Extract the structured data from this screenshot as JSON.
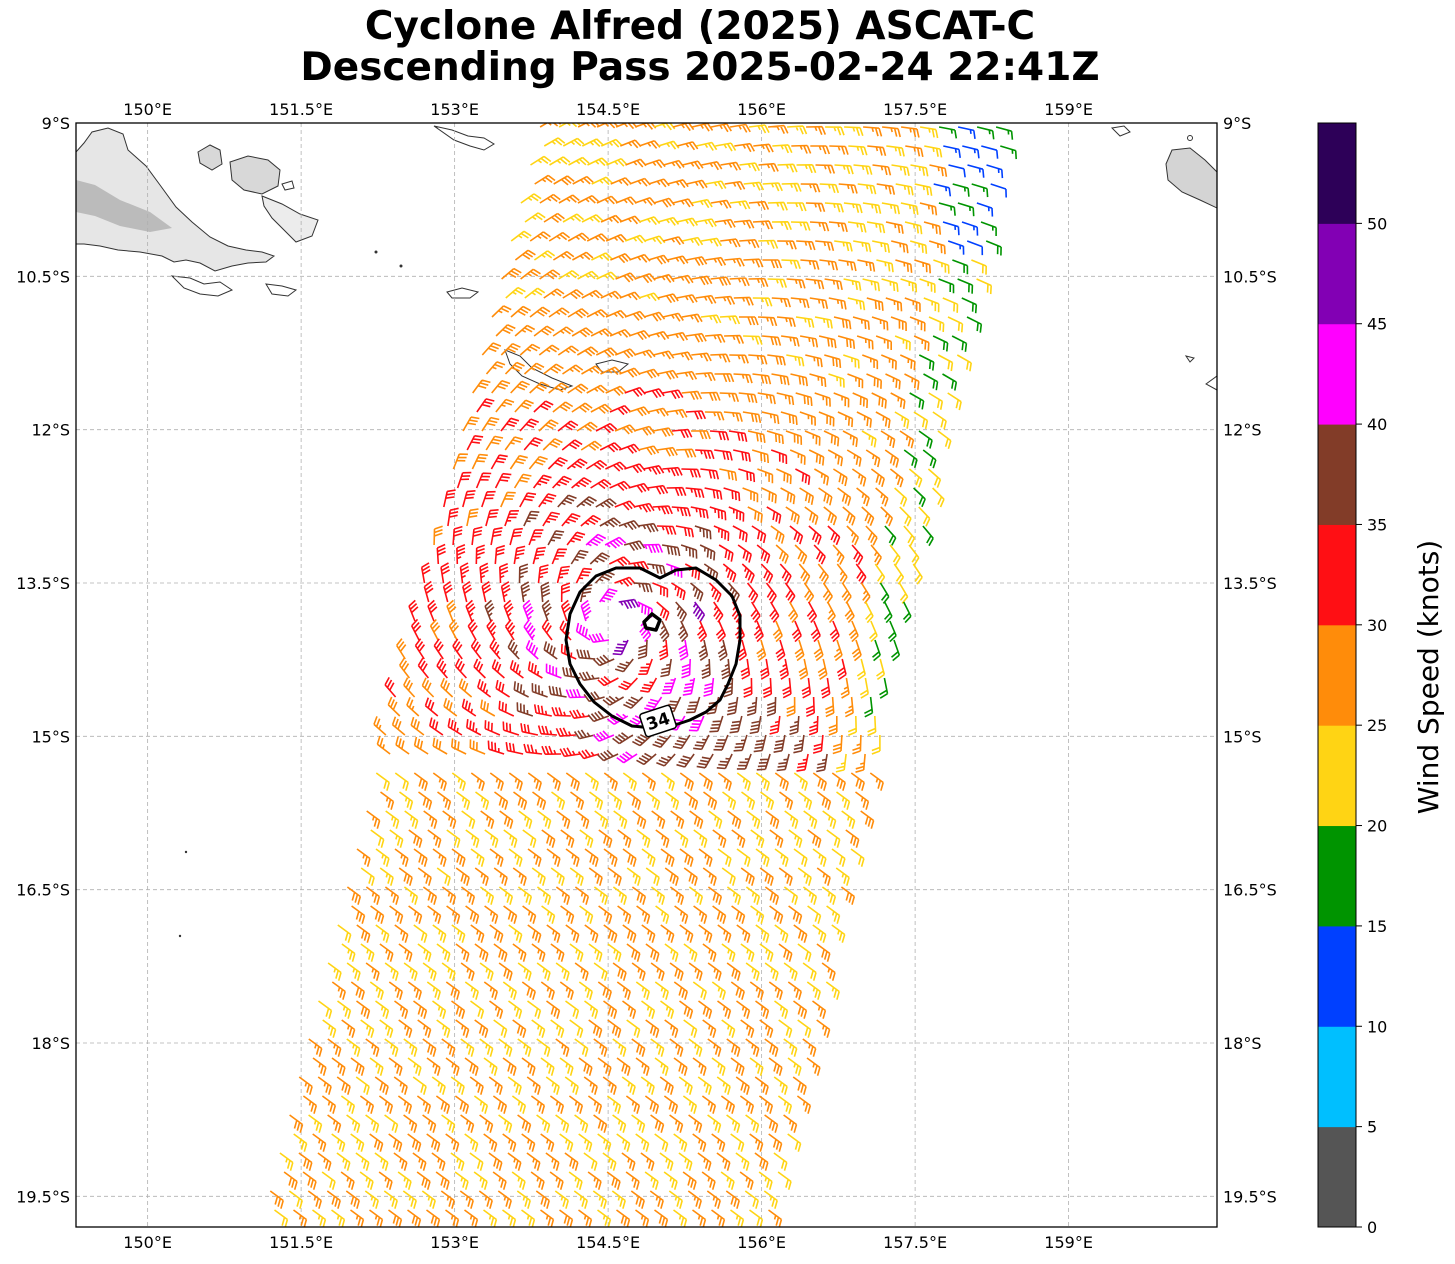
{
  "title": {
    "line1": "Cyclone Alfred (2025) ASCAT-C",
    "line2": "Descending Pass 2025-02-24 22:41Z"
  },
  "map": {
    "lon_range": [
      149.3,
      160.45
    ],
    "lat_range": [
      -19.8,
      -9.0
    ],
    "lon_ticks": [
      150,
      151.5,
      153,
      154.5,
      156,
      157.5,
      159
    ],
    "lon_tick_labels": [
      "150°E",
      "151.5°E",
      "153°E",
      "154.5°E",
      "156°E",
      "157.5°E",
      "159°E"
    ],
    "lat_ticks": [
      -9,
      -10.5,
      -12,
      -13.5,
      -15,
      -16.5,
      -18,
      -19.5
    ],
    "lat_tick_labels": [
      "9°S",
      "10.5°S",
      "12°S",
      "13.5°S",
      "15°S",
      "16.5°S",
      "18°S",
      "19.5°S"
    ],
    "gridlines": true,
    "storm_center": {
      "lon": 154.55,
      "lat": -13.9
    },
    "contour_label": "34"
  },
  "colorbar": {
    "label": "Wind Speed (knots)",
    "tick_values": [
      0,
      5,
      10,
      15,
      20,
      25,
      30,
      35,
      40,
      45,
      50
    ],
    "tick_labels": [
      "0",
      "5",
      "10",
      "15",
      "20",
      "25",
      "30",
      "35",
      "40",
      "45",
      "50"
    ],
    "bins": [
      {
        "range": "0-5",
        "color": "#555555"
      },
      {
        "range": "5-10",
        "color": "#00bfff"
      },
      {
        "range": "10-15",
        "color": "#0040ff"
      },
      {
        "range": "15-20",
        "color": "#009400"
      },
      {
        "range": "20-25",
        "color": "#ffd414"
      },
      {
        "range": "25-30",
        "color": "#ff8c0a"
      },
      {
        "range": "30-35",
        "color": "#ff0f14"
      },
      {
        "range": "35-40",
        "color": "#823c28"
      },
      {
        "range": "40-45",
        "color": "#ff00ff"
      },
      {
        "range": "45-50",
        "color": "#8200b4"
      },
      {
        "range": "50+",
        "color": "#2d0058"
      }
    ]
  }
}
